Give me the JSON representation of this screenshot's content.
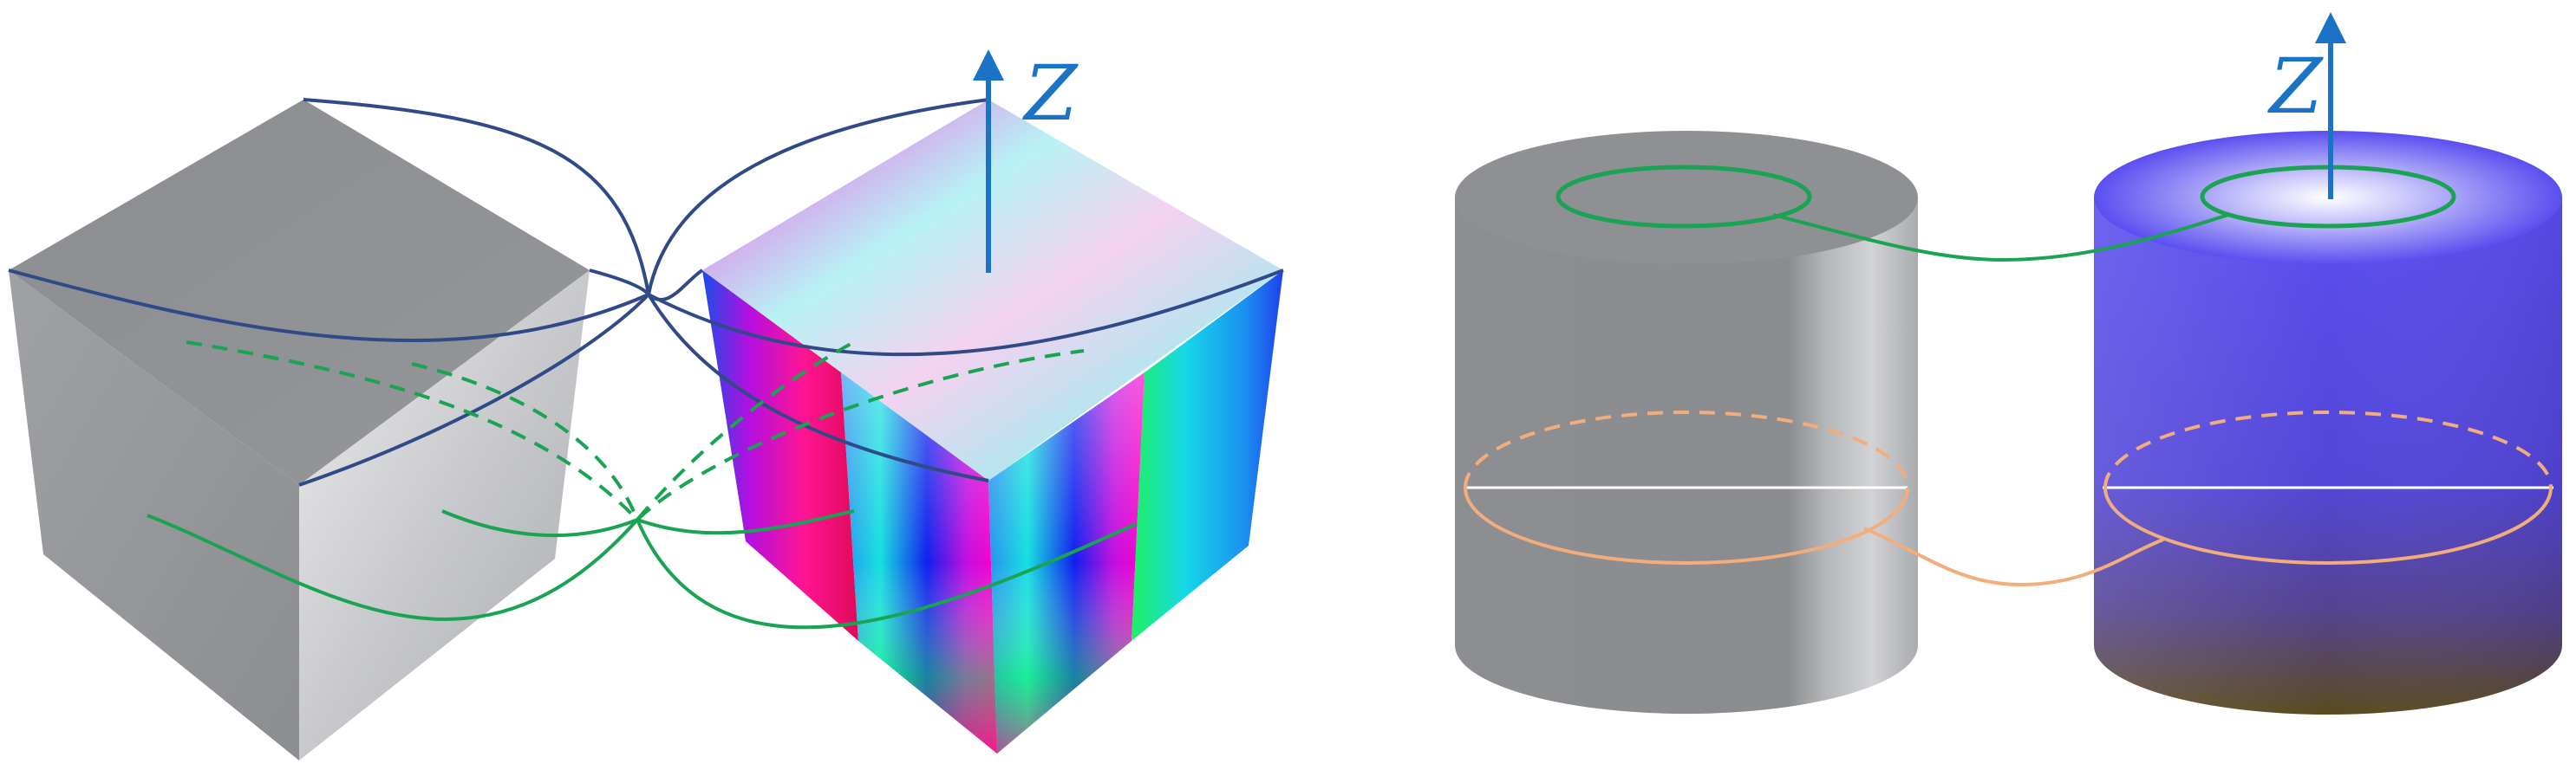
{
  "axis_labels": {
    "left_panel": "Z",
    "right_panel": "Z"
  },
  "colors": {
    "gray_object": "#8d8f92",
    "gray_light": "#d9dadc",
    "blue_link": "#2f4a86",
    "green_link": "#1aa352",
    "orange_link": "#f2ad7d",
    "axis_blue": "#1a73c4",
    "cylinder_blue": "#5a4de8"
  }
}
